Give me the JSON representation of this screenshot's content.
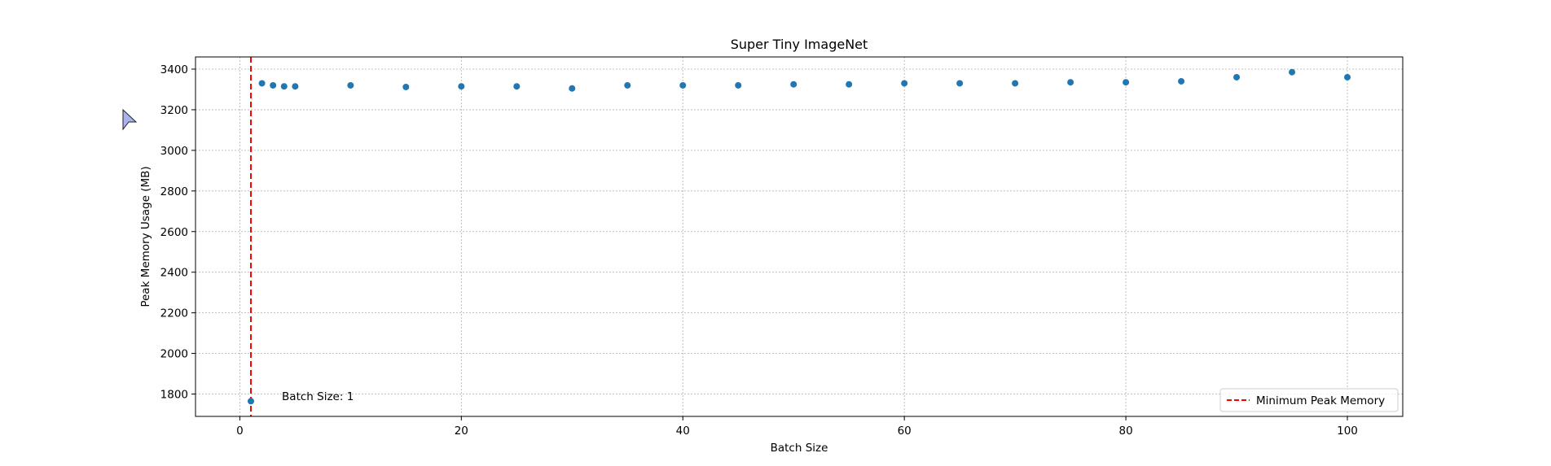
{
  "chart_data": {
    "type": "scatter",
    "title": "Super Tiny ImageNet",
    "xlabel": "Batch Size",
    "ylabel": "Peak Memory Usage (MB)",
    "xlim": [
      -4,
      105
    ],
    "ylim": [
      1690,
      3460
    ],
    "xticks": [
      0,
      20,
      40,
      60,
      80,
      100
    ],
    "yticks": [
      1800,
      2000,
      2200,
      2400,
      2600,
      2800,
      3000,
      3200,
      3400
    ],
    "grid": true,
    "legend_position": "lower-right",
    "point_color": "#1f77b4",
    "reference_color": "#ff0000",
    "series": [
      {
        "x": [
          1,
          2,
          3,
          4,
          5,
          10,
          15,
          20,
          25,
          30,
          35,
          40,
          45,
          50,
          55,
          60,
          65,
          70,
          75,
          80,
          85,
          90,
          95,
          100
        ],
        "y": [
          1765,
          3330,
          3320,
          3315,
          3315,
          3320,
          3312,
          3315,
          3315,
          3305,
          3320,
          3320,
          3320,
          3325,
          3325,
          3330,
          3330,
          3330,
          3335,
          3335,
          3340,
          3360,
          3385,
          3360
        ]
      }
    ],
    "reference_line": {
      "x": 1,
      "label": "Minimum Peak Memory",
      "style": "dashed"
    },
    "annotation": {
      "text": "Batch Size: 1",
      "x": 3.8,
      "y": 1790
    }
  },
  "cursor": {
    "icon": "cursor-arrow-icon"
  }
}
